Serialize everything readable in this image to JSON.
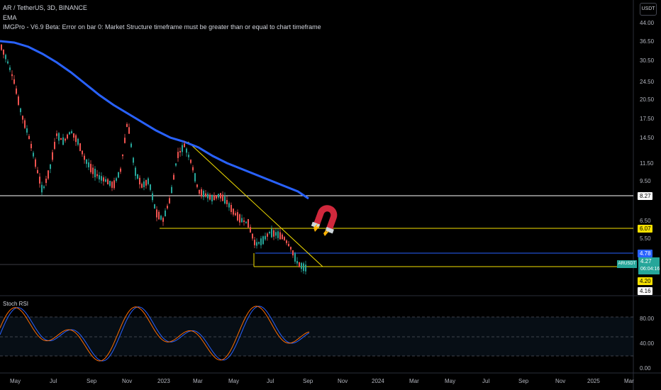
{
  "header": {
    "symbol_line": "AR / TetherUS, 3D, BINANCE",
    "ema_label": "EMA",
    "error_line": "IMGPro - V6.9 Beta: Error on bar 0: Market Structure timeframe must be greater than or equal to chart timeframe"
  },
  "currency_button": "USDT",
  "price_axis": [
    "44.00",
    "36.50",
    "30.50",
    "24.50",
    "20.50",
    "17.50",
    "14.50",
    "11.50",
    "9.50",
    "6.50",
    "5.50"
  ],
  "price_tags": [
    {
      "label": "8.27",
      "bg": "#ffffff",
      "fg": "#000000"
    },
    {
      "label": "6.07",
      "bg": "#f5e000",
      "fg": "#000000"
    },
    {
      "label": "4.78",
      "bg": "#2962ff",
      "fg": "#ffffff"
    },
    {
      "label": "4.20",
      "bg": "#f5e000",
      "fg": "#000000"
    },
    {
      "label": "4.16",
      "bg": "#ffffff",
      "fg": "#000000"
    }
  ],
  "ticker": {
    "symbol": "ARUSDT",
    "price": "4.27",
    "countdown": "06:04:16"
  },
  "rsi": {
    "title": "Stoch RSI",
    "axis": [
      "80.00",
      "40.00",
      "0.00"
    ]
  },
  "time_axis": [
    "May",
    "Jul",
    "Sep",
    "Nov",
    "2023",
    "Mar",
    "May",
    "Jul",
    "Sep",
    "Nov",
    "2024",
    "Mar",
    "May",
    "Jul",
    "Sep",
    "Nov",
    "2025",
    "Mar"
  ],
  "colors": {
    "up": "#26a69a",
    "down": "#ef5350",
    "ema": "#2962ff",
    "trendline": "#f5e000",
    "rsi_k": "#2962ff",
    "rsi_d": "#ff6d00"
  },
  "icons": {
    "magnet": "magnet-icon"
  }
}
